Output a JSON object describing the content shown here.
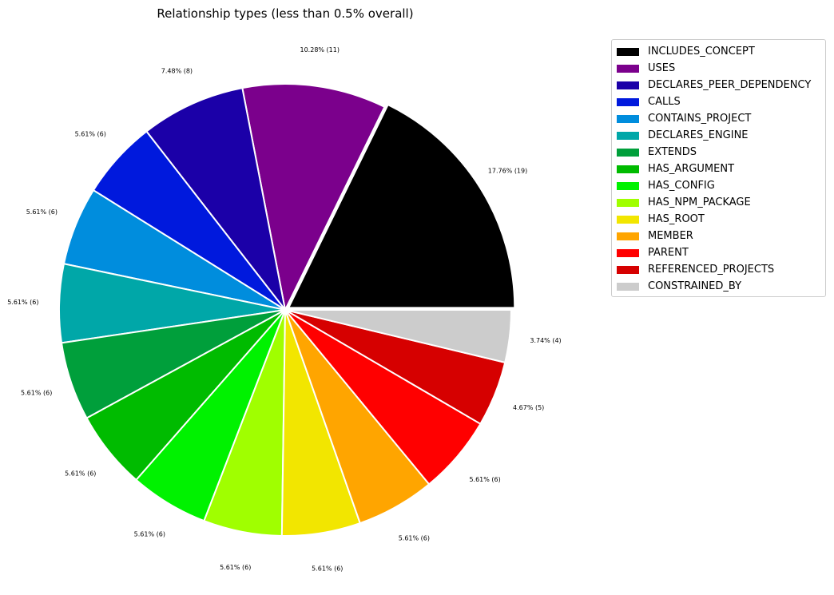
{
  "chart_data": {
    "type": "pie",
    "title": "Relationship types (less than 0.5% overall)",
    "legend_position": "top-right",
    "slices": [
      {
        "name": "INCLUDES_CONCEPT",
        "value": 19,
        "label": "17.76% (19)",
        "color": "#000000"
      },
      {
        "name": "USES",
        "value": 11,
        "label": "10.28% (11)",
        "color": "#7b008c"
      },
      {
        "name": "DECLARES_PEER_DEPENDENCY",
        "value": 8,
        "label": "7.48% (8)",
        "color": "#1b00a8"
      },
      {
        "name": "CALLS",
        "value": 6,
        "label": "5.61% (6)",
        "color": "#0019dd"
      },
      {
        "name": "CONTAINS_PROJECT",
        "value": 6,
        "label": "5.61% (6)",
        "color": "#008ddd"
      },
      {
        "name": "DECLARES_ENGINE",
        "value": 6,
        "label": "5.61% (6)",
        "color": "#00a7a8"
      },
      {
        "name": "EXTENDS",
        "value": 6,
        "label": "5.61% (6)",
        "color": "#009f3b"
      },
      {
        "name": "HAS_ARGUMENT",
        "value": 6,
        "label": "5.61% (6)",
        "color": "#00bb00"
      },
      {
        "name": "HAS_CONFIG",
        "value": 6,
        "label": "5.61% (6)",
        "color": "#00f200"
      },
      {
        "name": "HAS_NPM_PACKAGE",
        "value": 6,
        "label": "5.61% (6)",
        "color": "#a0ff00"
      },
      {
        "name": "HAS_ROOT",
        "value": 6,
        "label": "5.61% (6)",
        "color": "#f2e600"
      },
      {
        "name": "MEMBER",
        "value": 6,
        "label": "5.61% (6)",
        "color": "#ffa500"
      },
      {
        "name": "PARENT",
        "value": 6,
        "label": "5.61% (6)",
        "color": "#ff0000"
      },
      {
        "name": "REFERENCED_PROJECTS",
        "value": 5,
        "label": "4.67% (5)",
        "color": "#d60000"
      },
      {
        "name": "CONSTRAINED_BY",
        "value": 4,
        "label": "3.74% (4)",
        "color": "#cccccc"
      }
    ]
  }
}
